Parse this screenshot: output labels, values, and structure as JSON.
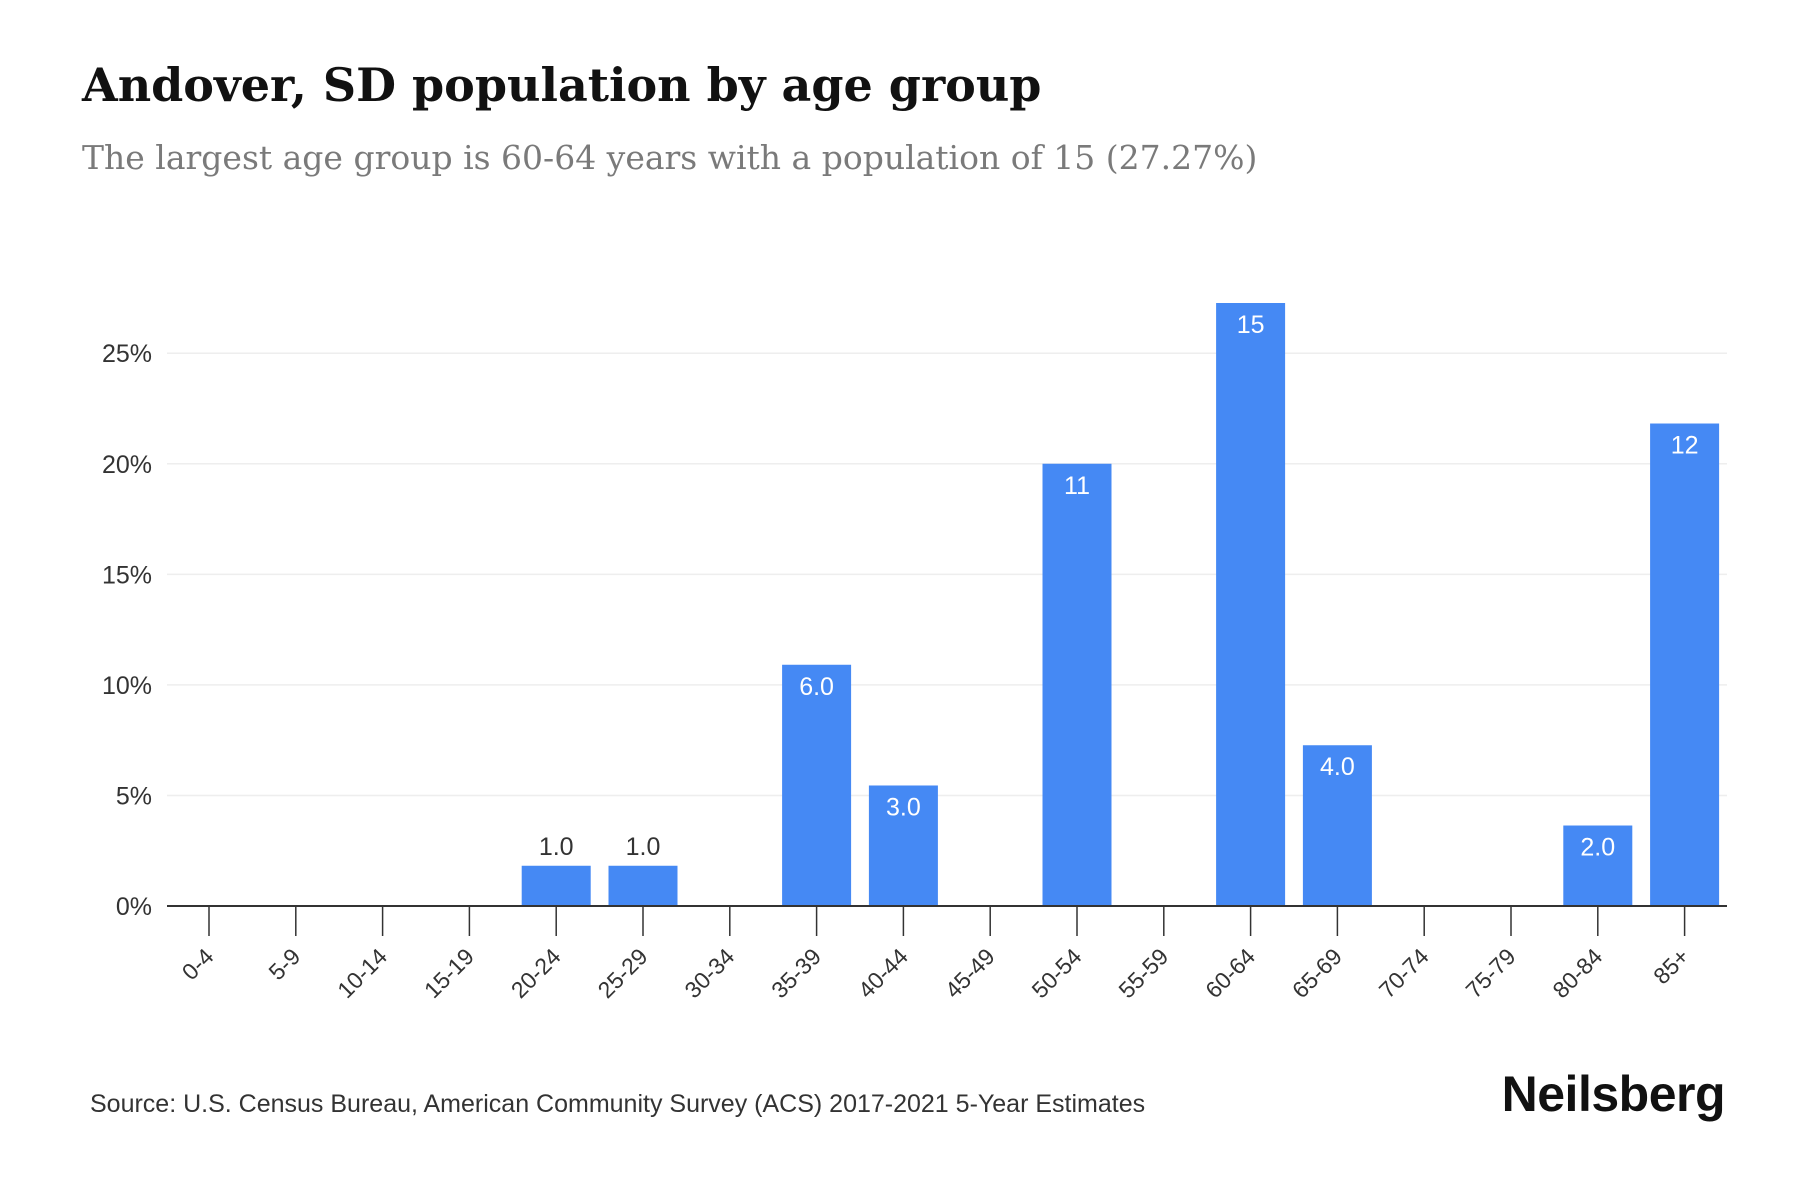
{
  "header": {
    "title": "Andover, SD population by age group",
    "subtitle": "The largest age group is 60-64 years with a population of 15 (27.27%)"
  },
  "footer": {
    "source": "Source: U.S. Census Bureau, American Community Survey (ACS) 2017-2021 5-Year Estimates",
    "brand": "Neilsberg"
  },
  "chart_data": {
    "type": "bar",
    "title": "Andover, SD population by age group",
    "subtitle": "The largest age group is 60-64 years with a population of 15 (27.27%)",
    "categories": [
      "0-4",
      "5-9",
      "10-14",
      "15-19",
      "20-24",
      "25-29",
      "30-34",
      "35-39",
      "40-44",
      "45-49",
      "50-54",
      "55-59",
      "60-64",
      "65-69",
      "70-74",
      "75-79",
      "80-84",
      "85+"
    ],
    "values": [
      0,
      0,
      0,
      0,
      1.82,
      1.82,
      0,
      10.91,
      5.45,
      0,
      20.0,
      0,
      27.27,
      7.27,
      0,
      0,
      3.64,
      21.82
    ],
    "data_labels": [
      "",
      "",
      "",
      "",
      "1.0",
      "1.0",
      "",
      "6.0",
      "3.0",
      "",
      "11",
      "",
      "15",
      "4.0",
      "",
      "",
      "2.0",
      "12"
    ],
    "yticks": [
      0,
      5,
      10,
      15,
      20,
      25
    ],
    "ytick_labels": [
      "0%",
      "5%",
      "10%",
      "15%",
      "20%",
      "25%"
    ],
    "ylim": [
      0,
      27.27
    ],
    "xlabel": "",
    "ylabel": "",
    "grid": true,
    "colors": {
      "bar": "#4589f4",
      "grid": "#eeeeee",
      "axis": "#333333",
      "label_inside": "#ffffff",
      "label_outside": "#333333"
    }
  }
}
